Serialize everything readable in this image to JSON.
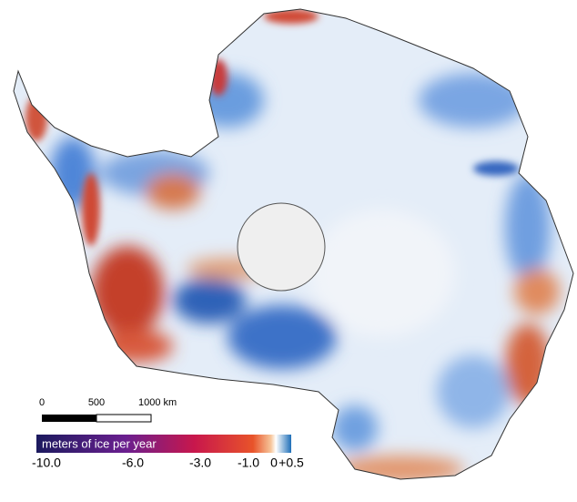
{
  "scale_bar": {
    "labels": [
      "0",
      "500",
      "1000 km"
    ]
  },
  "colorbar": {
    "title": "meters of ice per year",
    "tick_labels": [
      "-10.0",
      "-6.0",
      "-3.0",
      "-1.0",
      "0",
      "+0.5"
    ]
  }
}
